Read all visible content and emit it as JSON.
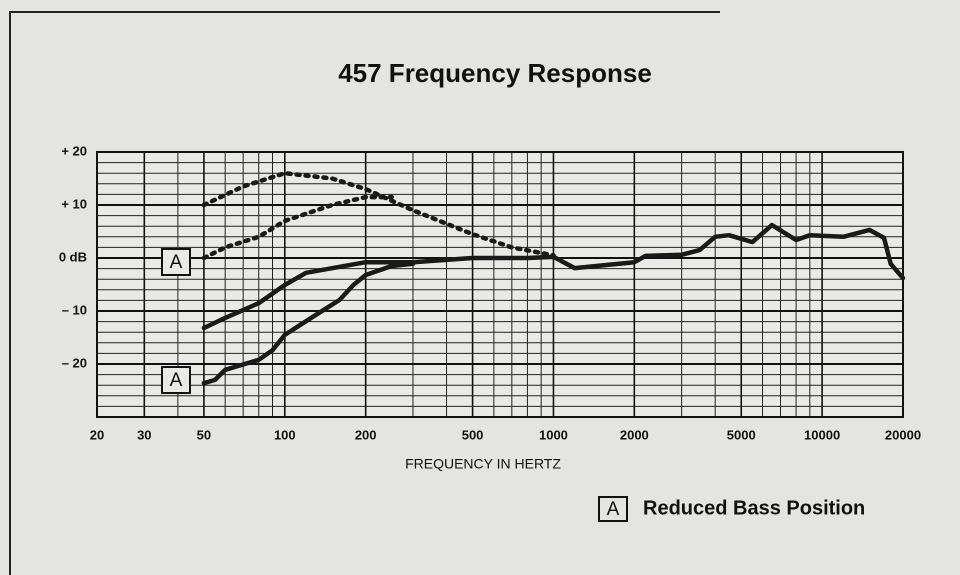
{
  "chart_data": {
    "type": "line",
    "title": "457 Frequency Response",
    "xlabel": "FREQUENCY IN HERTZ",
    "xscale": "log",
    "xlim": [
      20,
      20000
    ],
    "xticks": [
      20,
      30,
      50,
      100,
      200,
      500,
      1000,
      2000,
      5000,
      10000,
      20000
    ],
    "x_minor_ticks": [
      40,
      60,
      70,
      80,
      90,
      300,
      400,
      600,
      700,
      800,
      900,
      3000,
      4000,
      6000,
      7000,
      8000,
      9000
    ],
    "ylim": [
      -30,
      20
    ],
    "yticks": [
      {
        "value": 20,
        "label": "+ 20"
      },
      {
        "value": 10,
        "label": "+ 10"
      },
      {
        "value": 0,
        "label": "0 dB"
      },
      {
        "value": -10,
        "label": "– 10"
      },
      {
        "value": -20,
        "label": "– 20"
      }
    ],
    "y_minor_ticks": [
      -28,
      -26,
      -24,
      -22,
      -18,
      -16,
      -14,
      -12,
      -8,
      -6,
      -4,
      -2,
      2,
      4,
      6,
      8,
      12,
      14,
      16,
      18
    ],
    "grid": true,
    "series": [
      {
        "color": "#1a1a1a",
        "dashed": true,
        "x": [
          50,
          70,
          100,
          150,
          200,
          300,
          500,
          700,
          1000
        ],
        "values": [
          10,
          13.5,
          16,
          15,
          13,
          9,
          4.5,
          2,
          0.5
        ]
      },
      {
        "color": "#1a1a1a",
        "dashed": true,
        "x": [
          50,
          60,
          80,
          100,
          150,
          200,
          250
        ],
        "values": [
          0,
          2,
          4,
          7,
          10,
          11.5,
          11.5
        ]
      },
      {
        "color": "#1a1a1a",
        "dashed": false,
        "x": [
          50,
          60,
          80,
          100,
          120,
          200,
          300,
          500,
          800,
          1000,
          1200,
          2000,
          2200,
          3000,
          3500,
          4000,
          4500,
          5500,
          6500,
          8000,
          9000,
          12000,
          15000,
          17000,
          18000,
          20000
        ],
        "values": [
          -13.2,
          -11.3,
          -8.5,
          -5.1,
          -2.8,
          -0.8,
          -0.8,
          0,
          0,
          0.2,
          -1.9,
          -0.8,
          0.4,
          0.6,
          1.5,
          4,
          4.3,
          3,
          6.2,
          3.4,
          4.3,
          4,
          5.3,
          3.8,
          -1.1,
          -3.8
        ]
      },
      {
        "color": "#1a1a1a",
        "dashed": false,
        "x": [
          50,
          55,
          60,
          80,
          90,
          100,
          130,
          160,
          180,
          200,
          250,
          300
        ],
        "values": [
          -23.6,
          -23,
          -21.1,
          -19.2,
          -17.4,
          -14.5,
          -10.8,
          -7.9,
          -5.1,
          -3.2,
          -1.5,
          -1.1
        ]
      }
    ],
    "annotations": [
      {
        "text": "A"
      },
      {
        "text": "A"
      }
    ],
    "legend": {
      "marker": "A",
      "label": "Reduced Bass Position"
    }
  }
}
